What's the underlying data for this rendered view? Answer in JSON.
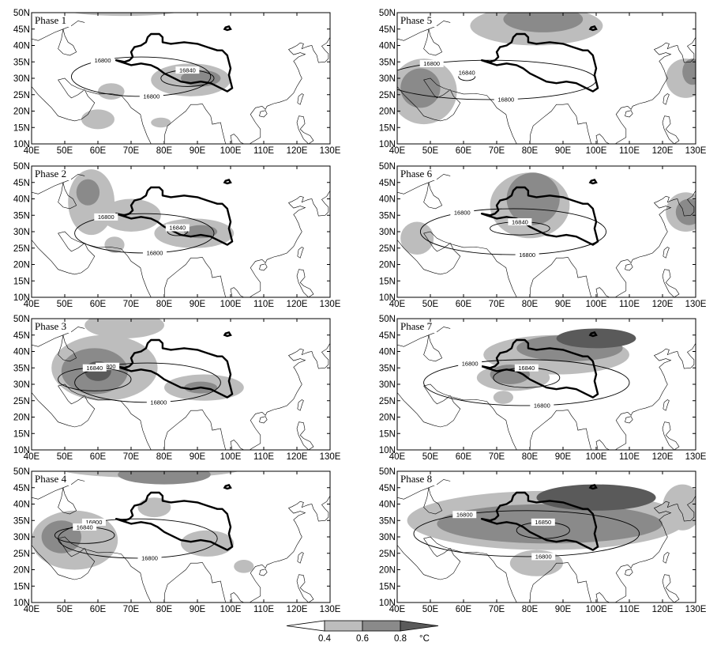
{
  "chart_data": {
    "type": "contour_map_panels",
    "xticks": [
      "40E",
      "50E",
      "60E",
      "70E",
      "80E",
      "90E",
      "100E",
      "110E",
      "120E",
      "130E"
    ],
    "yticks": [
      "10N",
      "15N",
      "20N",
      "25N",
      "30N",
      "35N",
      "40N",
      "45N",
      "50N"
    ],
    "xlim": [
      40,
      130
    ],
    "ylim": [
      10,
      50
    ],
    "colorbar": {
      "levels": [
        "0.4",
        "0.6",
        "0.8"
      ],
      "unit": "°C",
      "colors": [
        "#ffffff",
        "#bdbdbd",
        "#8a8a8a",
        "#5a5a5a"
      ]
    },
    "panels": [
      {
        "title": "Phase 1",
        "contours": [
          {
            "level": "16800",
            "center": [
              73,
              30.5
            ],
            "radii": [
              21,
              6
            ]
          },
          {
            "level": "16840",
            "center": [
              87,
              30
            ],
            "radii": [
              8,
              2.5
            ]
          }
        ],
        "shading": [
          {
            "level": 0.4,
            "center": [
              88,
              29.5
            ],
            "radii": [
              12,
              5
            ]
          },
          {
            "level": 0.6,
            "center": [
              91,
              30
            ],
            "radii": [
              6,
              2.5
            ]
          },
          {
            "level": 0.4,
            "center": [
              60,
              17.5
            ],
            "radii": [
              5,
              3
            ]
          },
          {
            "level": 0.4,
            "center": [
              64,
              26
            ],
            "radii": [
              4,
              2.5
            ]
          },
          {
            "level": 0.4,
            "center": [
              79,
              16.5
            ],
            "radii": [
              3,
              1.5
            ]
          },
          {
            "level": 0.4,
            "center": [
              68,
              51
            ],
            "radii": [
              18,
              2
            ]
          }
        ]
      },
      {
        "title": "Phase 2",
        "contours": [
          {
            "level": "16800",
            "center": [
              74,
              29.5
            ],
            "radii": [
              21,
              6
            ]
          },
          {
            "level": "16840",
            "center": [
              84,
              30
            ],
            "radii": [
              3,
              1.2
            ]
          }
        ],
        "shading": [
          {
            "level": 0.4,
            "center": [
              89,
              29.5
            ],
            "radii": [
              12,
              4.5
            ]
          },
          {
            "level": 0.6,
            "center": [
              91,
              30
            ],
            "radii": [
              5,
              2
            ]
          },
          {
            "level": 0.4,
            "center": [
              58,
              39
            ],
            "radii": [
              7,
              10
            ]
          },
          {
            "level": 0.6,
            "center": [
              57,
              42
            ],
            "radii": [
              3.5,
              4
            ]
          },
          {
            "level": 0.4,
            "center": [
              70,
              35
            ],
            "radii": [
              9,
              5
            ]
          },
          {
            "level": 0.4,
            "center": [
              65,
              26
            ],
            "radii": [
              3,
              2.5
            ]
          }
        ]
      },
      {
        "title": "Phase 3",
        "contours": [
          {
            "level": "16800",
            "center": [
              75,
              30.5
            ],
            "radii": [
              22,
              6
            ]
          },
          {
            "level": "16840",
            "center": [
              59,
              31.5
            ],
            "radii": [
              11,
              3.5
            ]
          }
        ],
        "shading": [
          {
            "level": 0.4,
            "center": [
              62,
              35
            ],
            "radii": [
              16,
              10
            ]
          },
          {
            "level": 0.6,
            "center": [
              59,
              34
            ],
            "radii": [
              10,
              7
            ]
          },
          {
            "level": 0.8,
            "center": [
              60,
              34
            ],
            "radii": [
              4,
              3
            ]
          },
          {
            "level": 0.4,
            "center": [
              92,
              29
            ],
            "radii": [
              12,
              4
            ]
          },
          {
            "level": 0.6,
            "center": [
              91,
              29
            ],
            "radii": [
              5,
              1.8
            ]
          },
          {
            "level": 0.4,
            "center": [
              68,
              48
            ],
            "radii": [
              12,
              4
            ]
          }
        ]
      },
      {
        "title": "Phase 4",
        "contours": [
          {
            "level": "16800",
            "center": [
              72,
              29.5
            ],
            "radii": [
              24,
              6
            ]
          },
          {
            "level": "16840",
            "center": [
              56,
              30.5
            ],
            "radii": [
              9,
              2.5
            ]
          }
        ],
        "shading": [
          {
            "level": 0.4,
            "center": [
              53,
              29
            ],
            "radii": [
              13,
              9
            ]
          },
          {
            "level": 0.6,
            "center": [
              49,
              30
            ],
            "radii": [
              6,
              5
            ]
          },
          {
            "level": 0.4,
            "center": [
              93,
              28
            ],
            "radii": [
              8,
              4
            ]
          },
          {
            "level": 0.4,
            "center": [
              77,
              39
            ],
            "radii": [
              5,
              3
            ]
          },
          {
            "level": 0.6,
            "center": [
              80,
              49
            ],
            "radii": [
              14,
              3
            ]
          },
          {
            "level": 0.4,
            "center": [
              76,
              51
            ],
            "radii": [
              28,
              3
            ]
          },
          {
            "level": 0.4,
            "center": [
              104,
              21
            ],
            "radii": [
              3,
              2
            ]
          }
        ]
      },
      {
        "title": "Phase 5",
        "contours": [
          {
            "level": "16800",
            "center": [
              68,
              29.5
            ],
            "radii": [
              32,
              6
            ]
          },
          {
            "level": "16840",
            "center": [
              61,
              30.5
            ],
            "radii": [
              2.5,
              1.2
            ]
          }
        ],
        "shading": [
          {
            "level": 0.4,
            "center": [
              48,
              26
            ],
            "radii": [
              10,
              10
            ]
          },
          {
            "level": 0.6,
            "center": [
              47,
              27
            ],
            "radii": [
              6,
              6
            ]
          },
          {
            "level": 0.4,
            "center": [
              82,
              46
            ],
            "radii": [
              20,
              6
            ]
          },
          {
            "level": 0.6,
            "center": [
              84,
              48
            ],
            "radii": [
              12,
              4
            ]
          },
          {
            "level": 0.4,
            "center": [
              127,
              30
            ],
            "radii": [
              6,
              6
            ]
          },
          {
            "level": 0.6,
            "center": [
              129,
              32
            ],
            "radii": [
              3,
              4
            ]
          }
        ]
      },
      {
        "title": "Phase 6",
        "contours": [
          {
            "level": "16800",
            "center": [
              75,
              30
            ],
            "radii": [
              28,
              7
            ]
          },
          {
            "level": "16840",
            "center": [
              77,
              31
            ],
            "radii": [
              9,
              2
            ]
          }
        ],
        "shading": [
          {
            "level": 0.4,
            "center": [
              80,
              38
            ],
            "radii": [
              12,
              10
            ]
          },
          {
            "level": 0.6,
            "center": [
              81,
              40
            ],
            "radii": [
              8,
              8
            ]
          },
          {
            "level": 0.4,
            "center": [
              46,
              28
            ],
            "radii": [
              5,
              5
            ]
          },
          {
            "level": 0.4,
            "center": [
              127,
              36
            ],
            "radii": [
              6,
              6
            ]
          },
          {
            "level": 0.6,
            "center": [
              128,
              36
            ],
            "radii": [
              4,
              4
            ]
          }
        ]
      },
      {
        "title": "Phase 7",
        "contours": [
          {
            "level": "16800",
            "center": [
              79,
              30.5
            ],
            "radii": [
              31,
              7
            ]
          },
          {
            "level": "16840",
            "center": [
              79,
              32
            ],
            "radii": [
              10,
              3
            ]
          }
        ],
        "shading": [
          {
            "level": 0.4,
            "center": [
              88,
              39
            ],
            "radii": [
              22,
              6
            ]
          },
          {
            "level": 0.6,
            "center": [
              92,
              41
            ],
            "radii": [
              16,
              4
            ]
          },
          {
            "level": 0.8,
            "center": [
              100,
              44
            ],
            "radii": [
              12,
              3
            ]
          },
          {
            "level": 0.4,
            "center": [
              75,
              32
            ],
            "radii": [
              11,
              4
            ]
          },
          {
            "level": 0.6,
            "center": [
              74,
              33
            ],
            "radii": [
              6,
              3
            ]
          },
          {
            "level": 0.4,
            "center": [
              72,
              26
            ],
            "radii": [
              3,
              2
            ]
          }
        ]
      },
      {
        "title": "Phase 8",
        "contours": [
          {
            "level": "16800",
            "center": [
              79,
              31
            ],
            "radii": [
              34,
              7
            ]
          },
          {
            "level": "16850",
            "center": [
              84,
              32
            ],
            "radii": [
              8,
              2.5
            ]
          }
        ],
        "shading": [
          {
            "level": 0.4,
            "center": [
              85,
              35
            ],
            "radii": [
              42,
              9
            ]
          },
          {
            "level": 0.6,
            "center": [
              86,
              34
            ],
            "radii": [
              34,
              6
            ]
          },
          {
            "level": 0.8,
            "center": [
              100,
              42
            ],
            "radii": [
              18,
              4
            ]
          },
          {
            "level": 0.4,
            "center": [
              82,
              22
            ],
            "radii": [
              8,
              4
            ]
          },
          {
            "level": 0.4,
            "center": [
              126,
              39
            ],
            "radii": [
              6,
              7
            ]
          }
        ]
      }
    ]
  }
}
